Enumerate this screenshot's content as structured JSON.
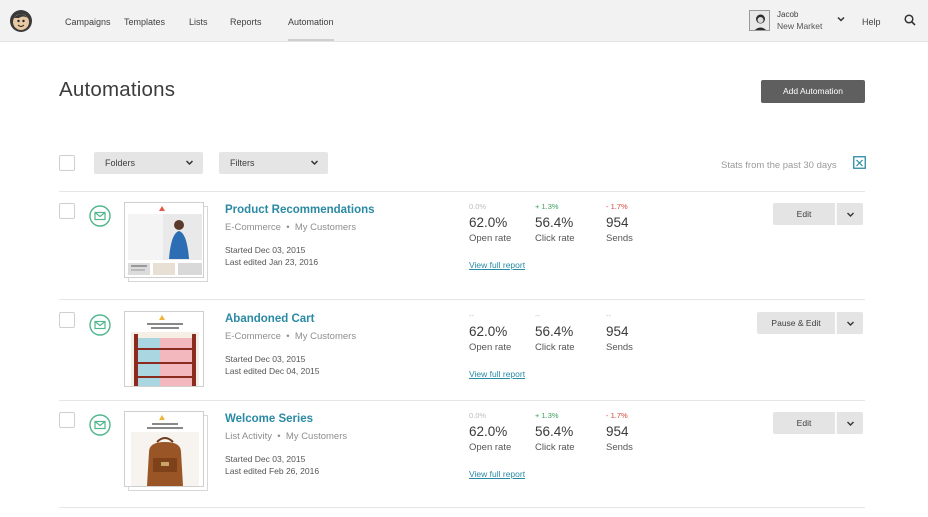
{
  "nav": {
    "links": [
      "Campaigns",
      "Templates",
      "Lists",
      "Reports",
      "Automation"
    ],
    "active": "Automation",
    "user_name": "Jacob",
    "user_org": "New Market",
    "help": "Help"
  },
  "header": {
    "title": "Automations",
    "add_button": "Add Automation"
  },
  "toolbar": {
    "folders": "Folders",
    "filters": "Filters",
    "stats_label": "Stats from the past 30 days"
  },
  "rows": [
    {
      "title": "Product Recommendations",
      "category": "E-Commerce",
      "list": "My Customers",
      "started": "Started Dec 03, 2015",
      "edited": "Last edited Jan 23, 2016",
      "stats": [
        {
          "delta": "0.0%",
          "trend": "neutral",
          "value": "62.0%",
          "label": "Open rate"
        },
        {
          "delta": "+ 1.3%",
          "trend": "pos",
          "value": "56.4%",
          "label": "Click rate"
        },
        {
          "delta": "- 1.7%",
          "trend": "neg",
          "value": "954",
          "label": "Sends"
        }
      ],
      "report_link": "View full report",
      "action": "Edit",
      "thumb_text": [
        "Just",
        "For",
        "You"
      ]
    },
    {
      "title": "Abandoned Cart",
      "category": "E-Commerce",
      "list": "My Customers",
      "started": "Started Dec 03, 2015",
      "edited": "Last edited Dec 04, 2015",
      "stats": [
        {
          "delta": "--",
          "trend": "neutral",
          "value": "62.0%",
          "label": "Open rate"
        },
        {
          "delta": "--",
          "trend": "neutral",
          "value": "56.4%",
          "label": "Click rate"
        },
        {
          "delta": "--",
          "trend": "neutral",
          "value": "954",
          "label": "Sends"
        }
      ],
      "report_link": "View full report",
      "action": "Pause & Edit",
      "thumb_text": [
        "DON'T SLEEP ON OUR",
        "SUNRISE BOWLS"
      ]
    },
    {
      "title": "Welcome Series",
      "category": "List Activity",
      "list": "My Customers",
      "started": "Started Dec 03, 2015",
      "edited": "Last edited Feb 26, 2016",
      "stats": [
        {
          "delta": "0.0%",
          "trend": "neutral",
          "value": "62.0%",
          "label": "Open rate"
        },
        {
          "delta": "+ 1.3%",
          "trend": "pos",
          "value": "56.4%",
          "label": "Click rate"
        },
        {
          "delta": "- 1.7%",
          "trend": "neg",
          "value": "954",
          "label": "Sends"
        }
      ],
      "report_link": "View full report",
      "action": "Edit",
      "thumb_text": [
        "THIS IS ONE",
        "FOR ADVENTURE"
      ]
    }
  ],
  "colors": {
    "link": "#2a8aa4",
    "positive": "#3a9e5f",
    "negative": "#d04a3a",
    "primary_button": "#5f5f5f",
    "mail_icon": "#4fb58c"
  }
}
